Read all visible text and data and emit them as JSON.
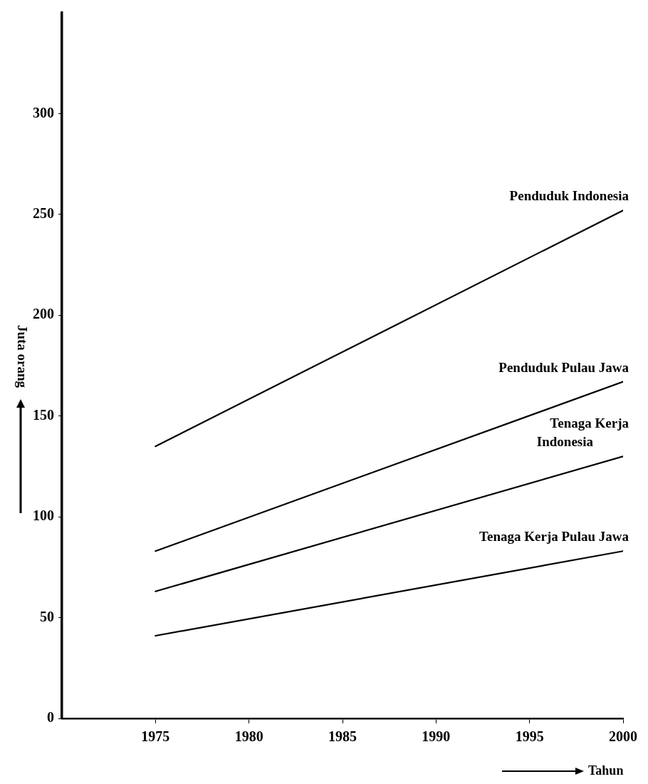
{
  "chart_data": {
    "type": "line",
    "xlabel": "Tahun",
    "ylabel": "Juta orang",
    "x": [
      1975,
      2000
    ],
    "xlim": [
      1970,
      2000
    ],
    "xticks": [
      1975,
      1980,
      1985,
      1990,
      1995,
      2000
    ],
    "ylim": [
      0,
      350
    ],
    "yticks": [
      0,
      50,
      100,
      150,
      200,
      250,
      300
    ],
    "grid": false,
    "legend": false,
    "marker": "none",
    "line_style": "solid",
    "series": [
      {
        "name": "Penduduk Indonesia",
        "color": "#000000",
        "values": [
          135,
          252
        ]
      },
      {
        "name": "Penduduk Pulau Jawa",
        "color": "#000000",
        "values": [
          83,
          167
        ]
      },
      {
        "name": "Tenaga Kerja Indonesia",
        "color": "#000000",
        "values": [
          63,
          130
        ]
      },
      {
        "name": "Tenaga Kerja Pulau Jawa",
        "color": "#000000",
        "values": [
          41,
          83
        ]
      }
    ]
  }
}
